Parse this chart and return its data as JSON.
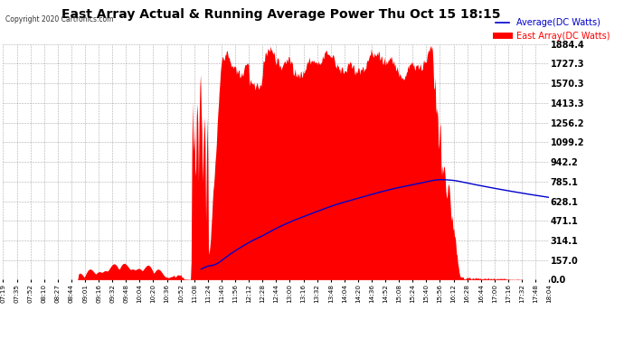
{
  "title": "East Array Actual & Running Average Power Thu Oct 15 18:15",
  "copyright": "Copyright 2020 Cartronics.com",
  "legend_avg": "Average(DC Watts)",
  "legend_east": "East Array(DC Watts)",
  "yticks": [
    0.0,
    157.0,
    314.1,
    471.1,
    628.1,
    785.1,
    942.2,
    1099.2,
    1256.2,
    1413.3,
    1570.3,
    1727.3,
    1884.4
  ],
  "ymax": 1884.4,
  "ymin": 0.0,
  "bg_color": "#ffffff",
  "plot_bg_color": "#ffffff",
  "grid_color": "#999999",
  "fill_color": "#ff0000",
  "avg_line_color": "#0000cc",
  "east_line_color": "#ff0000",
  "title_color": "#000000",
  "copyright_color": "#333333",
  "xtick_labels": [
    "07:19",
    "07:35",
    "07:52",
    "08:10",
    "08:27",
    "08:44",
    "09:01",
    "09:16",
    "09:32",
    "09:48",
    "10:04",
    "10:20",
    "10:36",
    "10:52",
    "11:08",
    "11:24",
    "11:40",
    "11:56",
    "12:12",
    "12:28",
    "12:44",
    "13:00",
    "13:16",
    "13:32",
    "13:48",
    "14:04",
    "14:20",
    "14:36",
    "14:52",
    "15:08",
    "15:24",
    "15:40",
    "15:56",
    "16:12",
    "16:28",
    "16:44",
    "17:00",
    "17:16",
    "17:32",
    "17:48",
    "18:04"
  ],
  "n_xticks": 41
}
